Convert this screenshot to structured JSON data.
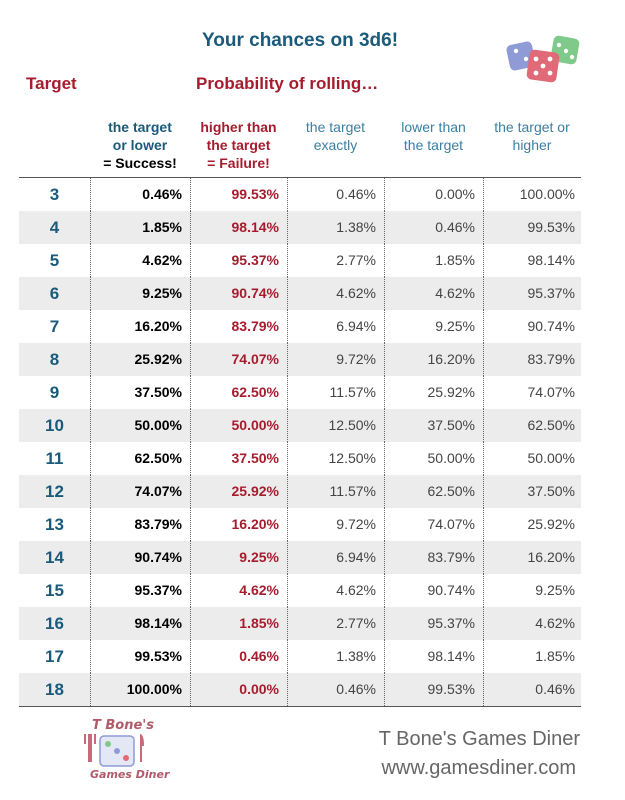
{
  "title": "Your chances on 3d6!",
  "header": {
    "target_label": "Target",
    "probability_label": "Probability of rolling…"
  },
  "columns": {
    "c1": {
      "line1": "the target",
      "line2": "or lower",
      "line3": "= Success!"
    },
    "c2": {
      "line1": "higher than",
      "line2": "the target",
      "line3": "= Failure!"
    },
    "c3": {
      "line1": "the target",
      "line2": "exactly"
    },
    "c4": {
      "line1": "lower than",
      "line2": "the target"
    },
    "c5": {
      "line1": "the target or",
      "line2": "higher"
    }
  },
  "rows": [
    {
      "target": "3",
      "or_lower": "0.46%",
      "higher": "99.53%",
      "exactly": "0.46%",
      "lower": "0.00%",
      "or_higher": "100.00%"
    },
    {
      "target": "4",
      "or_lower": "1.85%",
      "higher": "98.14%",
      "exactly": "1.38%",
      "lower": "0.46%",
      "or_higher": "99.53%"
    },
    {
      "target": "5",
      "or_lower": "4.62%",
      "higher": "95.37%",
      "exactly": "2.77%",
      "lower": "1.85%",
      "or_higher": "98.14%"
    },
    {
      "target": "6",
      "or_lower": "9.25%",
      "higher": "90.74%",
      "exactly": "4.62%",
      "lower": "4.62%",
      "or_higher": "95.37%"
    },
    {
      "target": "7",
      "or_lower": "16.20%",
      "higher": "83.79%",
      "exactly": "6.94%",
      "lower": "9.25%",
      "or_higher": "90.74%"
    },
    {
      "target": "8",
      "or_lower": "25.92%",
      "higher": "74.07%",
      "exactly": "9.72%",
      "lower": "16.20%",
      "or_higher": "83.79%"
    },
    {
      "target": "9",
      "or_lower": "37.50%",
      "higher": "62.50%",
      "exactly": "11.57%",
      "lower": "25.92%",
      "or_higher": "74.07%"
    },
    {
      "target": "10",
      "or_lower": "50.00%",
      "higher": "50.00%",
      "exactly": "12.50%",
      "lower": "37.50%",
      "or_higher": "62.50%"
    },
    {
      "target": "11",
      "or_lower": "62.50%",
      "higher": "37.50%",
      "exactly": "12.50%",
      "lower": "50.00%",
      "or_higher": "50.00%"
    },
    {
      "target": "12",
      "or_lower": "74.07%",
      "higher": "25.92%",
      "exactly": "11.57%",
      "lower": "62.50%",
      "or_higher": "37.50%"
    },
    {
      "target": "13",
      "or_lower": "83.79%",
      "higher": "16.20%",
      "exactly": "9.72%",
      "lower": "74.07%",
      "or_higher": "25.92%"
    },
    {
      "target": "14",
      "or_lower": "90.74%",
      "higher": "9.25%",
      "exactly": "6.94%",
      "lower": "83.79%",
      "or_higher": "16.20%"
    },
    {
      "target": "15",
      "or_lower": "95.37%",
      "higher": "4.62%",
      "exactly": "4.62%",
      "lower": "90.74%",
      "or_higher": "9.25%"
    },
    {
      "target": "16",
      "or_lower": "98.14%",
      "higher": "1.85%",
      "exactly": "2.77%",
      "lower": "95.37%",
      "or_higher": "4.62%"
    },
    {
      "target": "17",
      "or_lower": "99.53%",
      "higher": "0.46%",
      "exactly": "1.38%",
      "lower": "98.14%",
      "or_higher": "1.85%"
    },
    {
      "target": "18",
      "or_lower": "100.00%",
      "higher": "0.00%",
      "exactly": "0.46%",
      "lower": "99.53%",
      "or_higher": "0.46%"
    }
  ],
  "footer": {
    "logo_top": "T Bone's",
    "logo_bottom": "Games Diner",
    "brand": "T Bone's Games Diner",
    "url": "www.gamesdiner.com"
  },
  "colors": {
    "title_blue": "#1a5a7a",
    "accent_red": "#a51c2e",
    "header_blue": "#3a7fa3",
    "row_stripe": "#ececec"
  },
  "icons": {
    "dice": "dice-icon",
    "logo": "games-diner-logo"
  }
}
